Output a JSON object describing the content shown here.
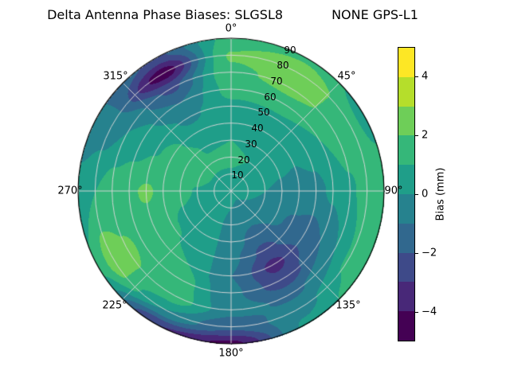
{
  "chart_data": {
    "type": "heatmap",
    "projection": "polar",
    "title": "Delta Antenna Phase Biases: SLGSL8            NONE GPS-L1",
    "polar": {
      "angle_labels": [
        "0°",
        "45°",
        "90°",
        "135°",
        "180°",
        "225°",
        "270°",
        "315°"
      ],
      "radial_tick_labels": [
        "10",
        "20",
        "30",
        "40",
        "50",
        "60",
        "70",
        "80",
        "90"
      ],
      "radial_range": [
        0,
        90
      ],
      "grid_circles_every": 10,
      "spokes_every_deg": 45
    },
    "colorbar": {
      "label": "Bias (mm)",
      "tick_labels": [
        "4",
        "2",
        "0",
        "−2",
        "−4"
      ],
      "tick_values": [
        4,
        2,
        0,
        -2,
        -4
      ],
      "range": [
        -5,
        5
      ],
      "band_colors_low_to_high": [
        "#440154",
        "#482878",
        "#3e4a89",
        "#31688e",
        "#26828e",
        "#1f9e89",
        "#35b779",
        "#6ece58",
        "#b5de2b",
        "#fde725"
      ]
    },
    "grid": {
      "azimuth_deg": [
        0,
        30,
        60,
        90,
        120,
        150,
        180,
        210,
        240,
        270,
        300,
        330
      ],
      "elevation": [
        0,
        10,
        20,
        30,
        40,
        50,
        60,
        70,
        80,
        90
      ],
      "bias_mm": [
        [
          0.3,
          0.9,
          1.2,
          1.0,
          0.7,
          0.8,
          1.3,
          1.8,
          2.1,
          1.4
        ],
        [
          0.3,
          0.8,
          1.0,
          0.7,
          0.5,
          0.8,
          1.6,
          2.3,
          2.7,
          1.8
        ],
        [
          0.3,
          0.5,
          0.4,
          0.2,
          0.1,
          0.4,
          1.0,
          1.7,
          1.4,
          0.6
        ],
        [
          0.3,
          0.2,
          0.0,
          -0.2,
          -0.4,
          -0.3,
          0.2,
          0.8,
          1.5,
          1.8
        ],
        [
          0.3,
          0.0,
          -0.3,
          -0.8,
          -1.2,
          -1.5,
          -1.0,
          0.0,
          1.2,
          1.8
        ],
        [
          0.3,
          -0.2,
          -0.8,
          -1.5,
          -2.3,
          -3.3,
          -2.6,
          -1.2,
          -0.3,
          0.2
        ],
        [
          0.3,
          0.0,
          -0.3,
          -0.5,
          -0.8,
          -1.0,
          -0.8,
          -0.6,
          -1.8,
          -4.3
        ],
        [
          0.3,
          0.2,
          0.3,
          0.5,
          0.8,
          1.0,
          1.5,
          1.7,
          0.0,
          -3.0
        ],
        [
          0.3,
          0.3,
          0.5,
          0.8,
          1.1,
          1.5,
          1.9,
          2.1,
          2.6,
          1.2
        ],
        [
          0.3,
          0.5,
          0.9,
          1.3,
          1.8,
          2.1,
          1.9,
          1.5,
          1.0,
          0.4
        ],
        [
          0.3,
          0.8,
          1.5,
          1.8,
          1.4,
          0.9,
          0.4,
          0.0,
          -0.6,
          -0.9
        ],
        [
          0.3,
          0.9,
          1.2,
          0.9,
          0.4,
          -0.2,
          -1.0,
          -2.2,
          -4.6,
          -2.2
        ]
      ]
    }
  }
}
